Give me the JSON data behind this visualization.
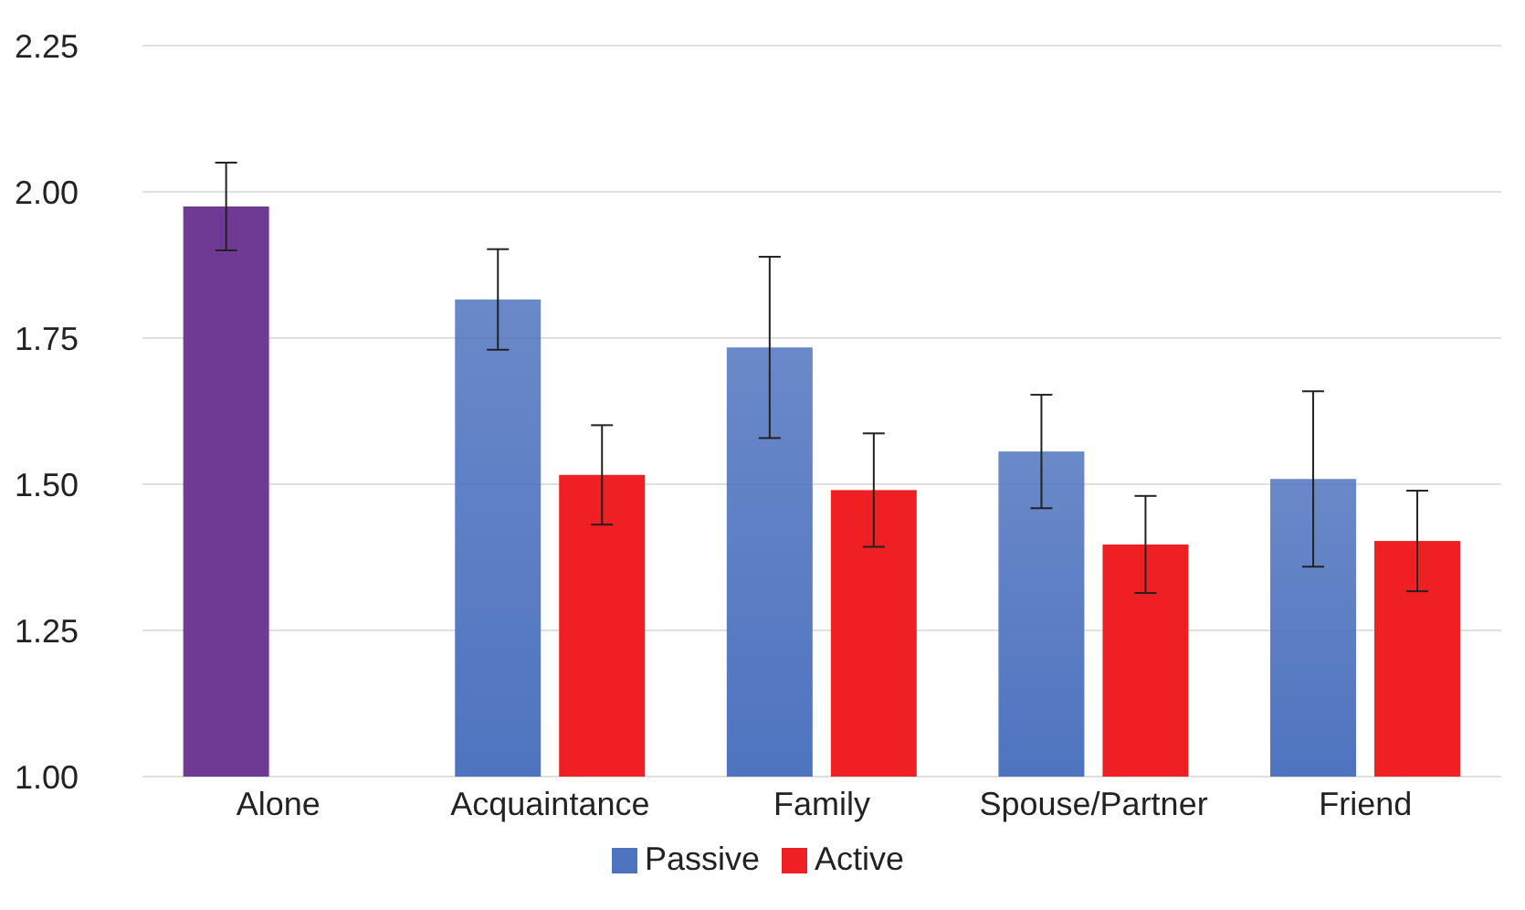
{
  "chart_data": {
    "type": "bar",
    "categories": [
      "Alone",
      "Acquaintance",
      "Family",
      "Spouse/Partner",
      "Friend"
    ],
    "series": [
      {
        "name": "Passive",
        "color": "#4f74bf",
        "colors": [
          "#6f3a93",
          "#4f74bf",
          "#4f74bf",
          "#4f74bf",
          "#4f74bf"
        ],
        "values": [
          1.975,
          1.816,
          1.734,
          1.556,
          1.509
        ],
        "errors": [
          0.075,
          0.086,
          0.155,
          0.097,
          0.15
        ]
      },
      {
        "name": "Active",
        "color": "#ee2024",
        "values": [
          null,
          1.516,
          1.49,
          1.397,
          1.403
        ],
        "errors": [
          null,
          0.085,
          0.097,
          0.083,
          0.086
        ]
      }
    ],
    "ylim": [
      1,
      2.25
    ],
    "yticks": [
      {
        "value": 1,
        "label": "1.00"
      },
      {
        "value": 1.25,
        "label": "1.25"
      },
      {
        "value": 1.5,
        "label": "1.50"
      },
      {
        "value": 1.75,
        "label": "1.75"
      },
      {
        "value": 2,
        "label": "2.00"
      },
      {
        "value": 2.25,
        "label": "2.25"
      }
    ],
    "grid": "y",
    "legend": "bottom"
  }
}
